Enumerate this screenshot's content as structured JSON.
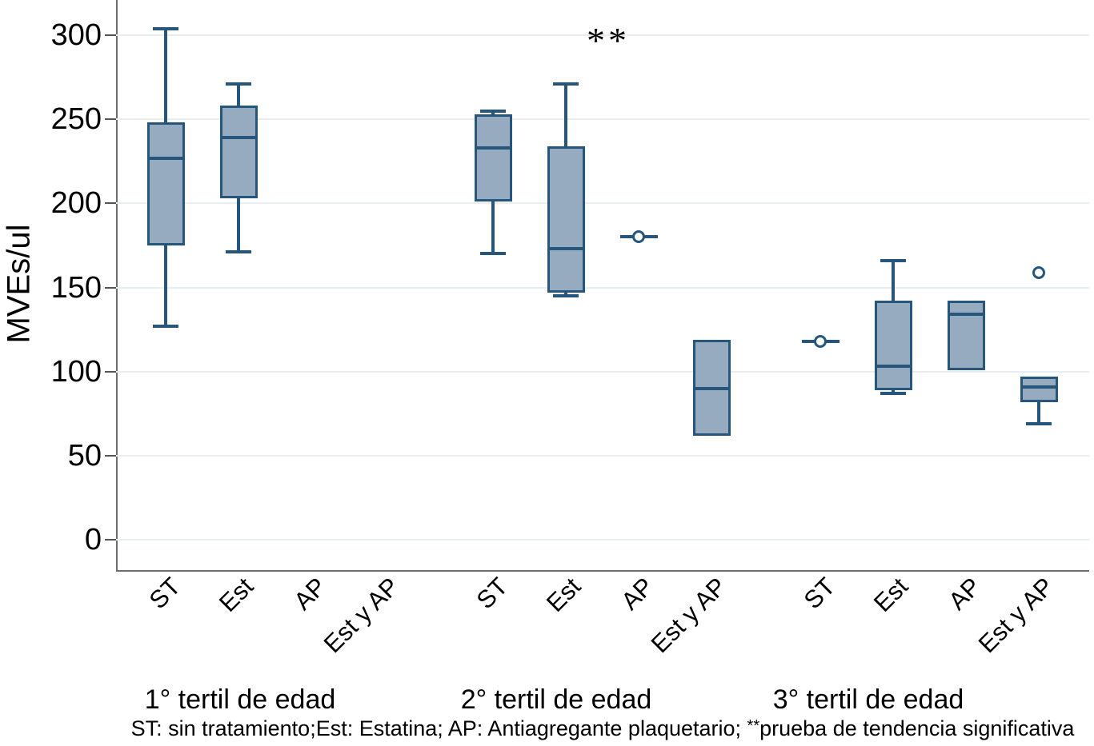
{
  "chart_data": {
    "type": "boxplot",
    "title": "",
    "ylabel": "MVEs/ul",
    "xlabel": "",
    "ylim": [
      0,
      300
    ],
    "yticks": [
      0,
      50,
      100,
      150,
      200,
      250,
      300
    ],
    "grid": true,
    "legend": "none",
    "categories": [
      "ST",
      "Est",
      "AP",
      "Est y AP"
    ],
    "annotation": "**",
    "groups": [
      {
        "label": "1° tertil de edad",
        "boxes": [
          {
            "category": "ST",
            "min": 127,
            "q1": 175,
            "median": 227,
            "q3": 248,
            "max": 304
          },
          {
            "category": "Est",
            "min": 171,
            "q1": 203,
            "median": 239,
            "q3": 258,
            "max": 271
          },
          {
            "category": "AP",
            "empty": true
          },
          {
            "category": "Est y AP",
            "empty": true
          }
        ]
      },
      {
        "label": "2° tertil de edad",
        "boxes": [
          {
            "category": "ST",
            "min": 170,
            "q1": 201,
            "median": 233,
            "q3": 253,
            "max": 255
          },
          {
            "category": "Est",
            "min": 145,
            "q1": 147,
            "median": 173,
            "q3": 234,
            "max": 271
          },
          {
            "category": "AP",
            "min": 180,
            "q1": 180,
            "median": 180,
            "q3": 180,
            "max": 180,
            "outliers": [
              180
            ]
          },
          {
            "category": "Est y AP",
            "min": 62,
            "q1": 62,
            "median": 90,
            "q3": 119,
            "max": 119
          }
        ]
      },
      {
        "label": "3° tertil de edad",
        "boxes": [
          {
            "category": "ST",
            "min": 118,
            "q1": 118,
            "median": 118,
            "q3": 118,
            "max": 118,
            "outliers": [
              118
            ]
          },
          {
            "category": "Est",
            "min": 87,
            "q1": 89,
            "median": 103,
            "q3": 142,
            "max": 166
          },
          {
            "category": "AP",
            "min": 101,
            "q1": 101,
            "median": 134,
            "q3": 142,
            "max": 142
          },
          {
            "category": "Est y AP",
            "min": 69,
            "q1": 82,
            "median": 91,
            "q3": 97,
            "max": 97,
            "outliers": [
              159
            ]
          }
        ]
      }
    ],
    "footnote_before": "ST: sin tratamiento;Est: Estatina; AP: Antiagregante plaquetario; ",
    "footnote_sup": "**",
    "footnote_after": "prueba de tendencia significativa",
    "colors": {
      "box_fill": "#96abc0",
      "box_stroke": "#27567d",
      "gridline": "#e7eef2",
      "axis": "#6e6e6e"
    }
  }
}
